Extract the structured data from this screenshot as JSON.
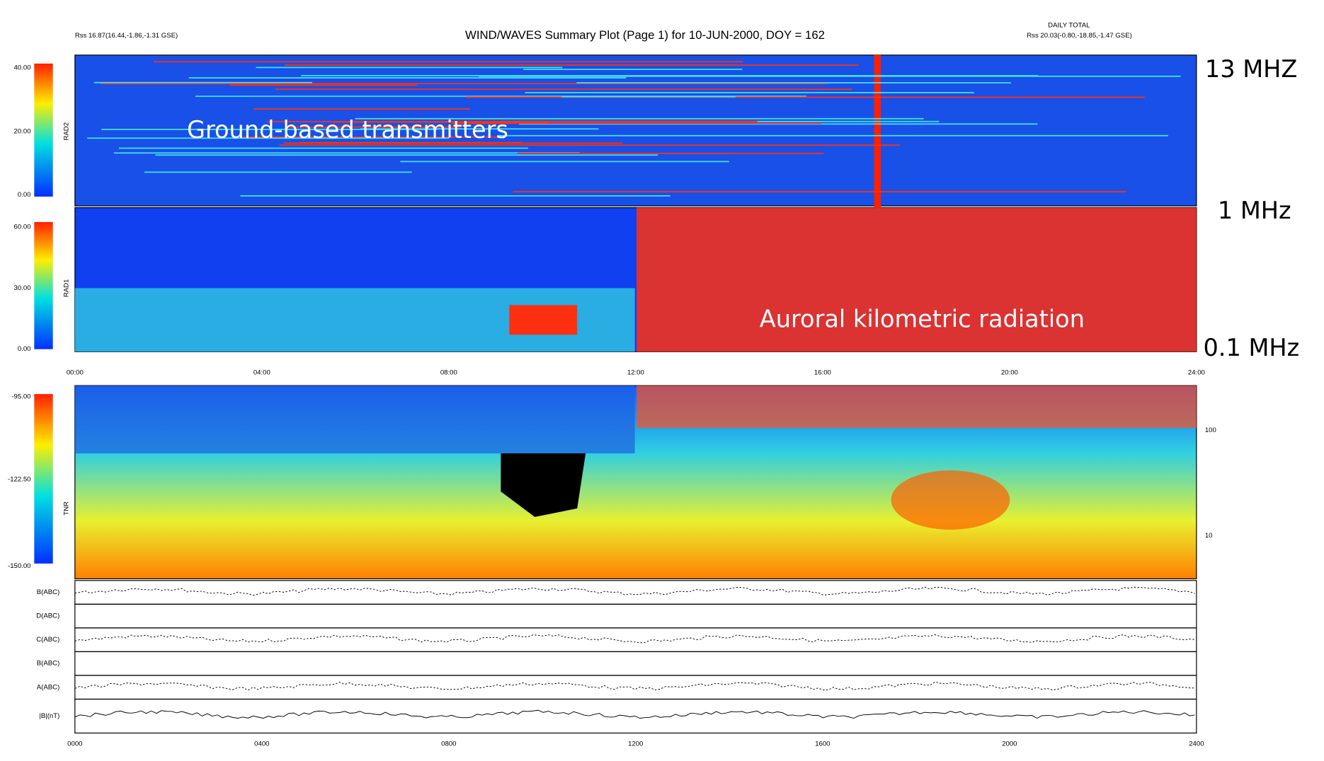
{
  "header": {
    "title": "WIND/WAVES Summary Plot (Page 1) for 10-JUN-2000, DOY = 162",
    "left_line": "Rss 16.87(16.44,-1.86,-1.31 GSE)",
    "right_line": "Rss 20.03(-0.80,-18.85,-1.47 GSE)",
    "right_top": "DAILY TOTAL"
  },
  "panels": [
    {
      "label": "RAD2",
      "colorbar_ticks": [
        "40.00",
        "20.00",
        "0.00"
      ]
    },
    {
      "label": "RAD1",
      "colorbar_ticks": [
        "60.00",
        "30.00",
        "0.00"
      ]
    },
    {
      "label": "TNR",
      "colorbar_ticks": [
        "-95.00",
        "-122.50",
        "-150.00"
      ],
      "right_ticks": [
        "100",
        "10"
      ]
    }
  ],
  "time_axis": [
    "00:00",
    "04:00",
    "08:00",
    "12:00",
    "16:00",
    "20:00",
    "24:00"
  ],
  "bottom_time_axis": [
    "0000",
    "0400",
    "0800",
    "1200",
    "1600",
    "2000",
    "2400"
  ],
  "line_panels": [
    "B(ABC)",
    "D(ABC)",
    "C(ABC)",
    "B(ABC)",
    "A(ABC)",
    "|B|(nT)"
  ],
  "annotations": {
    "ground": "Ground-based transmitters",
    "akr": "Auroral kilometric radiation",
    "f13": "13 MHZ",
    "f1": "1 MHz",
    "f01": "0.1 MHz"
  }
}
